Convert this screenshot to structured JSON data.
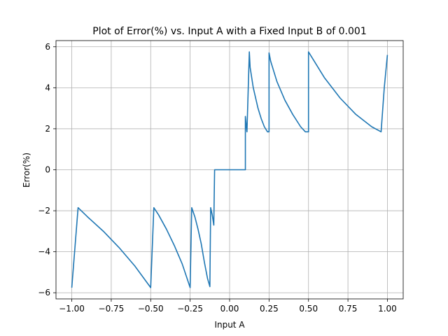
{
  "chart_data": {
    "type": "line",
    "title": "Plot of Error(%) vs. Input A with a Fixed Input B of 0.001",
    "xlabel": "Input A",
    "ylabel": "Error(%)",
    "xlim": [
      -1.1,
      1.1
    ],
    "ylim": [
      -6.3,
      6.3
    ],
    "xticks": [
      -1.0,
      -0.75,
      -0.5,
      -0.25,
      0.0,
      0.25,
      0.5,
      0.75,
      1.0
    ],
    "xtick_labels": [
      "−1.00",
      "−0.75",
      "−0.50",
      "−0.25",
      "0.00",
      "0.25",
      "0.50",
      "0.75",
      "1.00"
    ],
    "yticks": [
      -6,
      -4,
      -2,
      0,
      2,
      4,
      6
    ],
    "ytick_labels": [
      "−6",
      "−4",
      "−2",
      "0",
      "2",
      "4",
      "6"
    ],
    "grid": true,
    "series": [
      {
        "color": "#1f77b4",
        "x": [
          -1.0,
          -0.96,
          -0.9,
          -0.8,
          -0.7,
          -0.6,
          -0.5,
          -0.48,
          -0.45,
          -0.4,
          -0.35,
          -0.3,
          -0.25,
          -0.24,
          -0.22,
          -0.2,
          -0.18,
          -0.16,
          -0.14,
          -0.125,
          -0.12,
          -0.11,
          -0.1,
          -0.1,
          -0.095,
          0.0,
          0.1,
          0.1,
          0.105,
          0.11,
          0.125,
          0.13,
          0.15,
          0.18,
          0.2,
          0.22,
          0.24,
          0.25,
          0.25,
          0.26,
          0.3,
          0.35,
          0.4,
          0.45,
          0.48,
          0.5,
          0.5,
          0.52,
          0.6,
          0.7,
          0.8,
          0.9,
          0.96,
          0.98,
          1.0
        ],
        "y": [
          -5.75,
          -1.85,
          -2.3,
          -3.0,
          -3.8,
          -4.7,
          -5.75,
          -1.85,
          -2.2,
          -2.9,
          -3.7,
          -4.6,
          -5.75,
          -1.85,
          -2.3,
          -2.9,
          -3.6,
          -4.5,
          -5.3,
          -5.7,
          -1.85,
          -2.2,
          -2.7,
          -2.6,
          0.0,
          0.0,
          0.0,
          2.6,
          2.2,
          1.85,
          5.75,
          5.0,
          4.0,
          3.0,
          2.5,
          2.1,
          1.85,
          1.85,
          5.7,
          5.3,
          4.3,
          3.4,
          2.7,
          2.1,
          1.85,
          1.85,
          5.75,
          5.5,
          4.5,
          3.5,
          2.7,
          2.1,
          1.85,
          4.0,
          5.6
        ]
      }
    ]
  }
}
